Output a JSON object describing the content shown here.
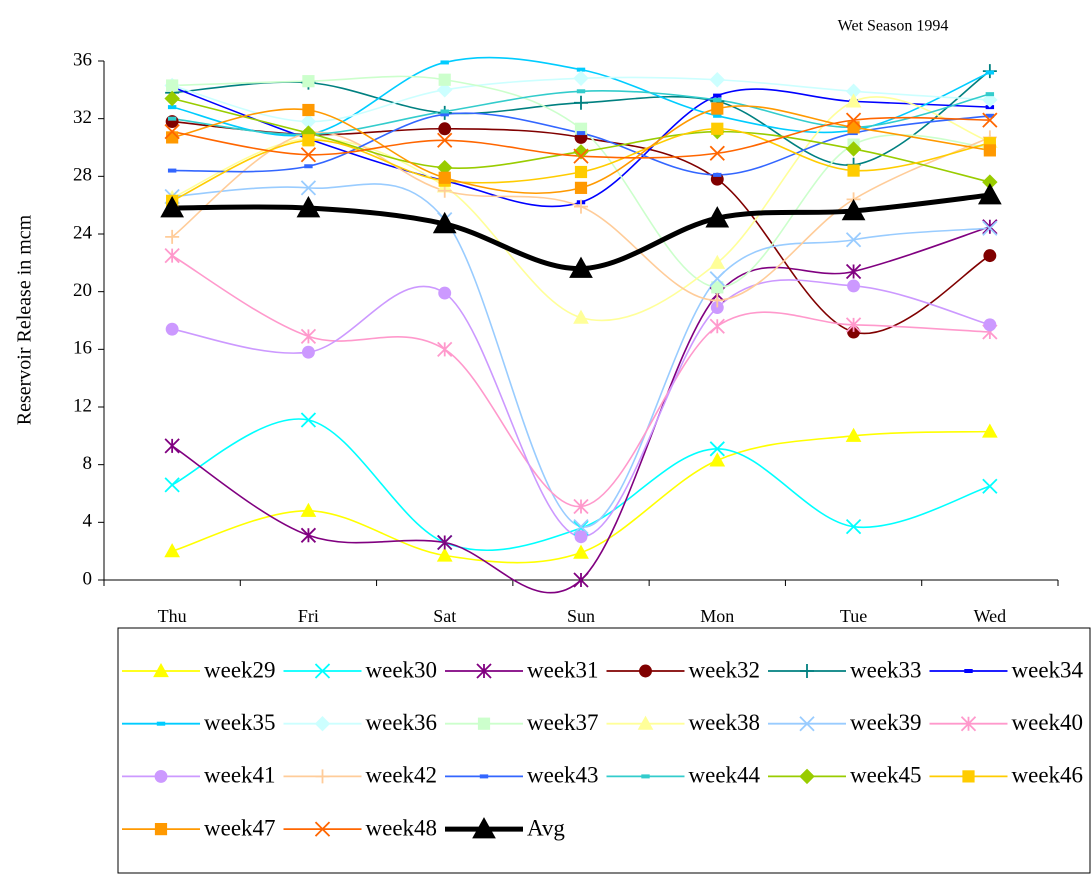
{
  "chart_data": {
    "type": "line",
    "title": "Wet Season 1994",
    "y_label": "Reservoir Release in mcm",
    "categories": [
      "Thu",
      "Fri",
      "Sat",
      "Sun",
      "Mon",
      "Tue",
      "Wed"
    ],
    "ylim": [
      0,
      36
    ],
    "yticks": [
      0,
      4,
      8,
      12,
      16,
      20,
      24,
      28,
      32,
      36
    ],
    "smooth": true,
    "series": [
      {
        "name": "week29",
        "color": "#ffff00",
        "marker": "triangle",
        "values": [
          2.0,
          4.8,
          1.7,
          1.9,
          8.3,
          10.0,
          10.3
        ]
      },
      {
        "name": "week30",
        "color": "#00ffff",
        "marker": "x",
        "values": [
          6.6,
          11.1,
          2.6,
          3.6,
          9.1,
          3.7,
          6.5
        ]
      },
      {
        "name": "week31",
        "color": "#800080",
        "marker": "star",
        "values": [
          9.3,
          3.1,
          2.6,
          0.0,
          19.8,
          21.4,
          24.5
        ]
      },
      {
        "name": "week32",
        "color": "#800000",
        "marker": "circle",
        "values": [
          31.8,
          30.9,
          31.3,
          30.7,
          27.8,
          17.2,
          22.5
        ]
      },
      {
        "name": "week33",
        "color": "#008080",
        "marker": "plus",
        "values": [
          33.8,
          34.5,
          32.4,
          33.1,
          33.2,
          28.8,
          35.3
        ]
      },
      {
        "name": "week34",
        "color": "#0000ff",
        "marker": "dash",
        "values": [
          34.2,
          30.6,
          27.7,
          26.2,
          33.6,
          33.2,
          32.8
        ]
      },
      {
        "name": "week35",
        "color": "#00ccff",
        "marker": "dash",
        "values": [
          32.8,
          30.9,
          35.9,
          35.4,
          32.2,
          31.2,
          35.2
        ]
      },
      {
        "name": "week36",
        "color": "#ccffff",
        "marker": "diamond",
        "values": [
          34.3,
          31.8,
          34.0,
          34.8,
          34.7,
          33.9,
          33.3
        ]
      },
      {
        "name": "week37",
        "color": "#ccffcc",
        "marker": "square",
        "values": [
          34.3,
          34.6,
          34.7,
          31.3,
          20.3,
          30.2,
          30.0
        ]
      },
      {
        "name": "week38",
        "color": "#ffff99",
        "marker": "triangle",
        "values": [
          26.5,
          30.6,
          27.3,
          18.2,
          22.0,
          33.2,
          30.4
        ]
      },
      {
        "name": "week39",
        "color": "#99ccff",
        "marker": "x",
        "values": [
          26.6,
          27.2,
          25.0,
          3.7,
          20.9,
          23.6,
          24.4
        ]
      },
      {
        "name": "week40",
        "color": "#ff99cc",
        "marker": "star",
        "values": [
          22.5,
          16.9,
          16.0,
          5.1,
          17.6,
          17.7,
          17.2
        ]
      },
      {
        "name": "week41",
        "color": "#cc99ff",
        "marker": "circle",
        "values": [
          17.4,
          15.8,
          19.9,
          3.0,
          18.9,
          20.4,
          17.7
        ]
      },
      {
        "name": "week42",
        "color": "#ffcc99",
        "marker": "plus",
        "values": [
          23.8,
          31.0,
          27.0,
          25.9,
          19.4,
          26.4,
          30.7
        ]
      },
      {
        "name": "week43",
        "color": "#3366ff",
        "marker": "dash",
        "values": [
          28.4,
          28.7,
          32.3,
          31.0,
          28.1,
          31.0,
          32.2
        ]
      },
      {
        "name": "week44",
        "color": "#33cccc",
        "marker": "dash",
        "values": [
          32.0,
          30.9,
          32.5,
          33.9,
          33.3,
          31.4,
          33.7
        ]
      },
      {
        "name": "week45",
        "color": "#99cc00",
        "marker": "diamond",
        "values": [
          33.4,
          31.0,
          28.6,
          29.7,
          31.1,
          29.9,
          27.6
        ]
      },
      {
        "name": "week46",
        "color": "#ffcc00",
        "marker": "square",
        "values": [
          26.3,
          30.5,
          27.7,
          28.3,
          31.3,
          28.4,
          30.3
        ]
      },
      {
        "name": "week47",
        "color": "#ff9900",
        "marker": "square",
        "values": [
          30.7,
          32.6,
          27.9,
          27.2,
          32.7,
          31.4,
          29.8
        ]
      },
      {
        "name": "week48",
        "color": "#ff6600",
        "marker": "x",
        "values": [
          31.1,
          29.5,
          30.5,
          29.4,
          29.6,
          31.9,
          31.9
        ]
      },
      {
        "name": "Avg",
        "color": "#000000",
        "marker": "triangle",
        "bold": true,
        "values": [
          25.8,
          25.8,
          24.7,
          21.6,
          25.1,
          25.6,
          26.7
        ]
      }
    ]
  }
}
